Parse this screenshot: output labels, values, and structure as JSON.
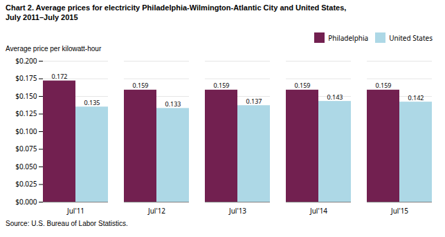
{
  "chart_data": {
    "type": "bar",
    "title": "Chart 2. Average prices for electricity Philadelphia-Wilmington-Atlantic City and United States,",
    "subtitle": "July 2011–July 2015",
    "ylabel": "Average price per kilowatt-hour",
    "source": "Source: U.S. Bureau of Labor Statistics.",
    "categories": [
      "Jul'11",
      "Jul'12",
      "Jul'13",
      "Jul'14",
      "Jul'15"
    ],
    "series": [
      {
        "name": "Philadelphia",
        "color": "#722050",
        "values": [
          0.172,
          0.159,
          0.159,
          0.159,
          0.159
        ]
      },
      {
        "name": "United States",
        "color": "#add8e6",
        "values": [
          0.135,
          0.133,
          0.137,
          0.143,
          0.142
        ]
      }
    ],
    "ylim": [
      0,
      0.2
    ],
    "yticks": [
      {
        "value": 0.0,
        "label": "$0.000"
      },
      {
        "value": 0.025,
        "label": "$0.025"
      },
      {
        "value": 0.05,
        "label": "$0.050"
      },
      {
        "value": 0.075,
        "label": "$0.075"
      },
      {
        "value": 0.1,
        "label": "$0.100"
      },
      {
        "value": 0.125,
        "label": "$0.125"
      },
      {
        "value": 0.15,
        "label": "$0.150"
      },
      {
        "value": 0.175,
        "label": "$0.175"
      },
      {
        "value": 0.2,
        "label": "$0.200"
      }
    ],
    "grid": true,
    "legend": "upper right",
    "data_labels": true
  }
}
